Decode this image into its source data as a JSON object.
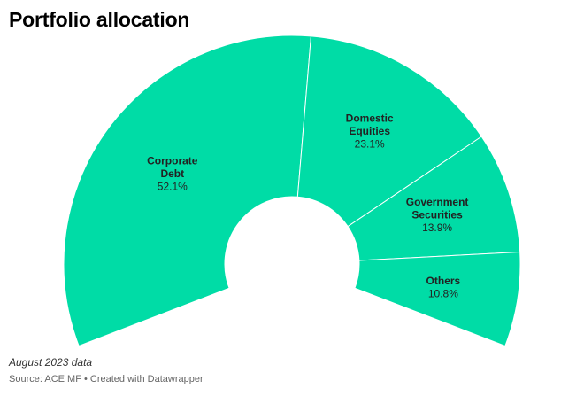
{
  "title": "Portfolio allocation",
  "note": "August 2023 data",
  "source": "Source: ACE MF • Created with Datawrapper",
  "colors": {
    "slice": "#00DCA6",
    "separator": "#ffffff",
    "label": "#222222"
  },
  "chart_data": {
    "type": "pie",
    "variant": "semi-donut",
    "title": "Portfolio allocation",
    "unit": "%",
    "slices": [
      {
        "label_lines": [
          "Corporate",
          "Debt"
        ],
        "value": 52.1,
        "value_label": "52.1%"
      },
      {
        "label_lines": [
          "Domestic",
          "Equities"
        ],
        "value": 23.1,
        "value_label": "23.1%"
      },
      {
        "label_lines": [
          "Government",
          "Securities"
        ],
        "value": 13.9,
        "value_label": "13.9%"
      },
      {
        "label_lines": [
          "Others"
        ],
        "value": 10.8,
        "value_label": "10.8%"
      }
    ]
  }
}
